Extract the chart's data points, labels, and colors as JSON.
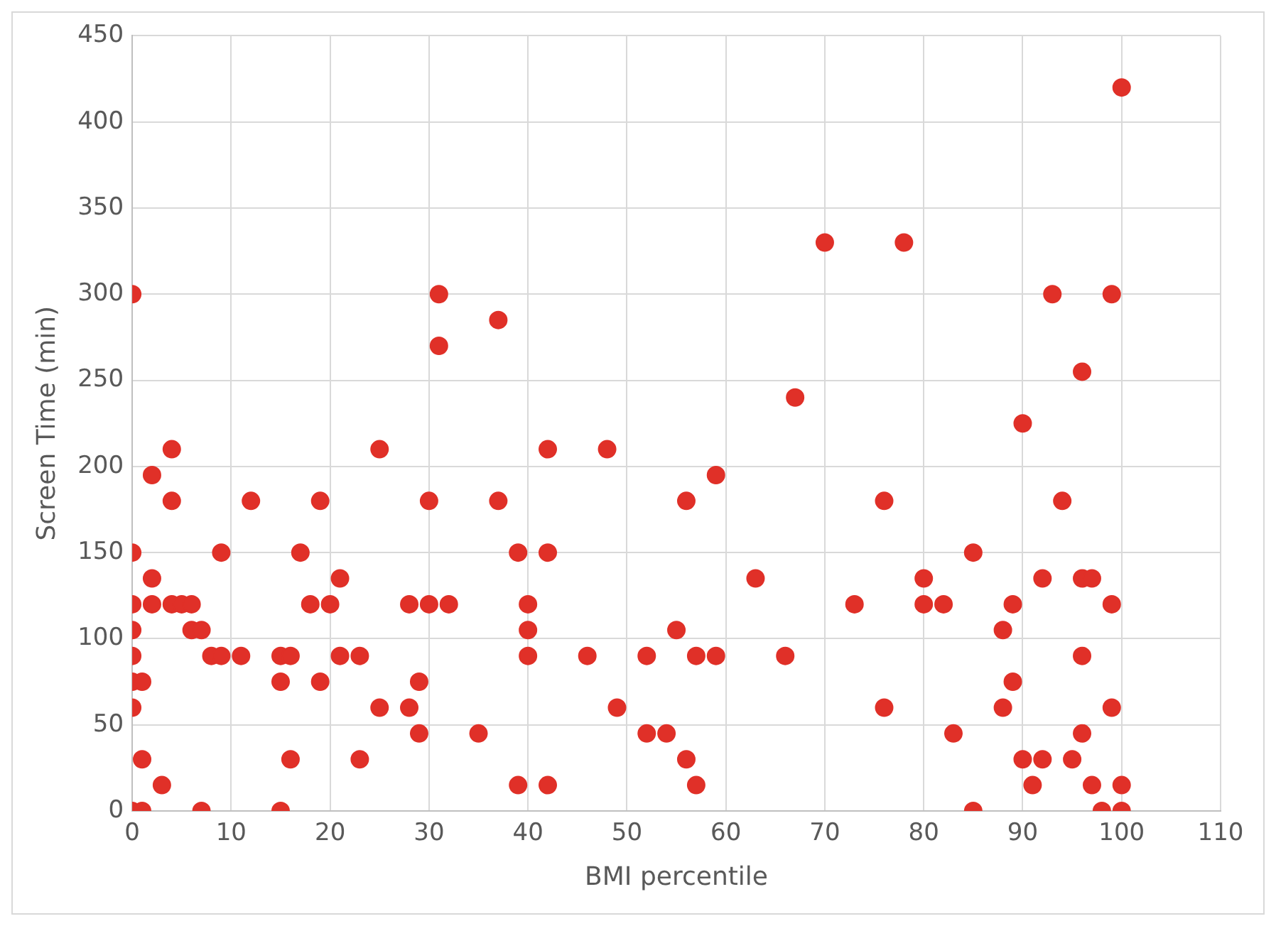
{
  "chart_data": {
    "type": "scatter",
    "xlabel": "BMI percentile",
    "ylabel": "Screen Time (min)",
    "xlim": [
      0,
      110
    ],
    "xticks": [
      0,
      10,
      20,
      30,
      40,
      50,
      60,
      70,
      80,
      90,
      100,
      110
    ],
    "ylim": [
      0,
      450
    ],
    "yticks": [
      0,
      50,
      100,
      150,
      200,
      250,
      300,
      350,
      400,
      450
    ],
    "grid": true,
    "legend": false,
    "marker": "circle",
    "series": [
      {
        "color": "#e03028",
        "x": [
          0,
          0,
          0,
          0,
          0,
          0,
          1,
          0,
          0,
          1,
          1,
          2,
          2,
          2,
          3,
          4,
          4,
          4,
          5,
          6,
          6,
          7,
          7,
          8,
          9,
          9,
          11,
          12,
          15,
          15,
          15,
          16,
          16,
          17,
          18,
          19,
          19,
          20,
          21,
          21,
          23,
          23,
          25,
          25,
          28,
          28,
          29,
          29,
          30,
          30,
          31,
          31,
          32,
          35,
          37,
          37,
          39,
          39,
          40,
          40,
          40,
          42,
          42,
          42,
          46,
          48,
          49,
          52,
          52,
          54,
          55,
          56,
          56,
          57,
          57,
          59,
          59,
          63,
          66,
          67,
          70,
          73,
          76,
          76,
          78,
          80,
          80,
          82,
          83,
          85,
          85,
          88,
          88,
          89,
          89,
          90,
          90,
          91,
          92,
          92,
          93,
          94,
          95,
          96,
          96,
          96,
          96,
          97,
          97,
          98,
          99,
          99,
          99,
          100,
          100,
          100
        ],
        "values": [
          300,
          150,
          120,
          105,
          90,
          75,
          75,
          60,
          0,
          0,
          30,
          195,
          135,
          120,
          15,
          210,
          180,
          120,
          120,
          120,
          105,
          105,
          0,
          90,
          90,
          150,
          90,
          180,
          90,
          75,
          0,
          90,
          30,
          150,
          120,
          180,
          75,
          120,
          135,
          90,
          90,
          30,
          210,
          60,
          120,
          60,
          75,
          45,
          180,
          120,
          300,
          270,
          120,
          45,
          285,
          180,
          150,
          15,
          120,
          105,
          90,
          210,
          150,
          15,
          90,
          210,
          60,
          90,
          45,
          45,
          105,
          180,
          30,
          90,
          15,
          195,
          90,
          135,
          90,
          240,
          330,
          120,
          180,
          60,
          330,
          135,
          120,
          120,
          45,
          150,
          0,
          105,
          60,
          120,
          75,
          225,
          30,
          15,
          135,
          30,
          300,
          180,
          30,
          255,
          135,
          90,
          45,
          135,
          15,
          0,
          300,
          120,
          60,
          420,
          15,
          0
        ]
      }
    ]
  }
}
